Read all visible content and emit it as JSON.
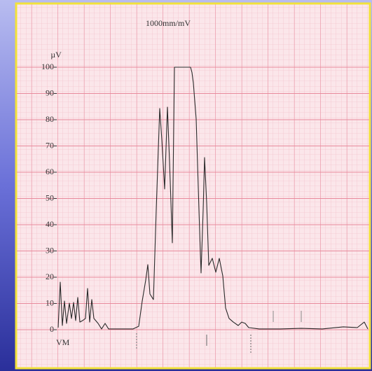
{
  "chart_data": {
    "type": "line",
    "title": "1000mm/mV",
    "y_label": "µV",
    "annotation": "VM",
    "color": "#2a2a2a",
    "x": [
      0,
      3,
      6,
      9,
      12,
      16,
      19,
      22,
      25,
      28,
      31,
      35,
      39,
      42,
      45,
      48,
      51,
      57,
      62,
      67,
      72,
      87,
      107,
      115,
      120,
      125,
      128,
      131,
      136,
      140,
      145,
      148,
      152,
      156,
      159,
      163,
      166,
      189,
      191,
      193,
      197,
      201,
      204,
      207,
      209,
      212,
      215,
      220,
      225,
      230,
      235,
      239,
      244,
      250,
      257,
      262,
      267,
      272,
      287,
      317,
      347,
      377,
      407,
      427,
      437,
      442
    ],
    "values": [
      0.8,
      18.1,
      1.6,
      10.9,
      2.4,
      10.1,
      4.3,
      10.4,
      3.5,
      12.3,
      2.9,
      3.5,
      4.3,
      15.7,
      2.9,
      11.5,
      4.3,
      2.4,
      0.3,
      2.4,
      0.3,
      0.3,
      0.3,
      1.3,
      10.9,
      18.9,
      24.8,
      13.6,
      11.5,
      45.6,
      84.3,
      72.3,
      53.6,
      84.8,
      64,
      33.1,
      100,
      100,
      98,
      94,
      80.3,
      45.6,
      21.6,
      45.6,
      65.6,
      48.3,
      24.5,
      27.2,
      21.9,
      27.2,
      20.5,
      8.3,
      4.3,
      2.9,
      1.6,
      2.9,
      2.4,
      0.8,
      0.3,
      0.3,
      0.5,
      0.3,
      1.1,
      0.8,
      2.9,
      0.3
    ],
    "xlim": [
      0,
      442
    ],
    "ylim": [
      0,
      100
    ],
    "yticks": [
      0,
      10,
      20,
      30,
      40,
      50,
      60,
      70,
      80,
      90,
      100
    ],
    "grid": true
  }
}
